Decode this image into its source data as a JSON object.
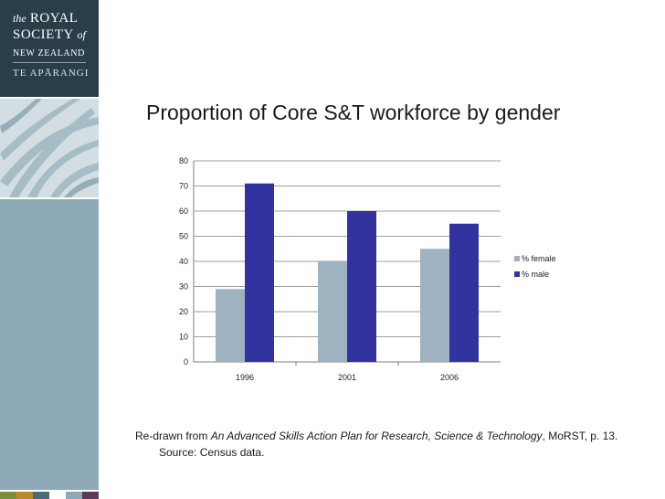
{
  "branding": {
    "line1_prefix": "the",
    "line1_main": "ROYAL",
    "line2_main": "SOCIETY",
    "line2_suffix": "of",
    "line3": "NEW ZEALAND",
    "line4": "TE APĀRANGI"
  },
  "colors": {
    "brand_dark": "#2a3e49",
    "panel": "#8eaab8",
    "female": "#9fb2c0",
    "male": "#33339f",
    "strip": [
      "#7a8f3a",
      "#b88a2a",
      "#4d6a78",
      "#ffffff",
      "#8eaab8",
      "#5c3a5e"
    ]
  },
  "slide": {
    "title": "Proportion of Core S&T workforce by gender",
    "caption_prefix": "Re-drawn from ",
    "caption_italic": "An Advanced Skills Action Plan for Research, Science & Technology",
    "caption_suffix": ", MoRST, p. 13.",
    "source": "Source: Census data."
  },
  "chart_data": {
    "type": "bar",
    "categories": [
      "1996",
      "2001",
      "2006"
    ],
    "series": [
      {
        "name": "% female",
        "values": [
          29,
          40,
          45
        ]
      },
      {
        "name": "% male",
        "values": [
          71,
          60,
          55
        ]
      }
    ],
    "title": "",
    "xlabel": "",
    "ylabel": "",
    "ylim": [
      0,
      80
    ],
    "yticks": [
      "0",
      "10",
      "20",
      "30",
      "40",
      "50",
      "60",
      "70",
      "80"
    ],
    "grid": true,
    "legend": "right"
  }
}
